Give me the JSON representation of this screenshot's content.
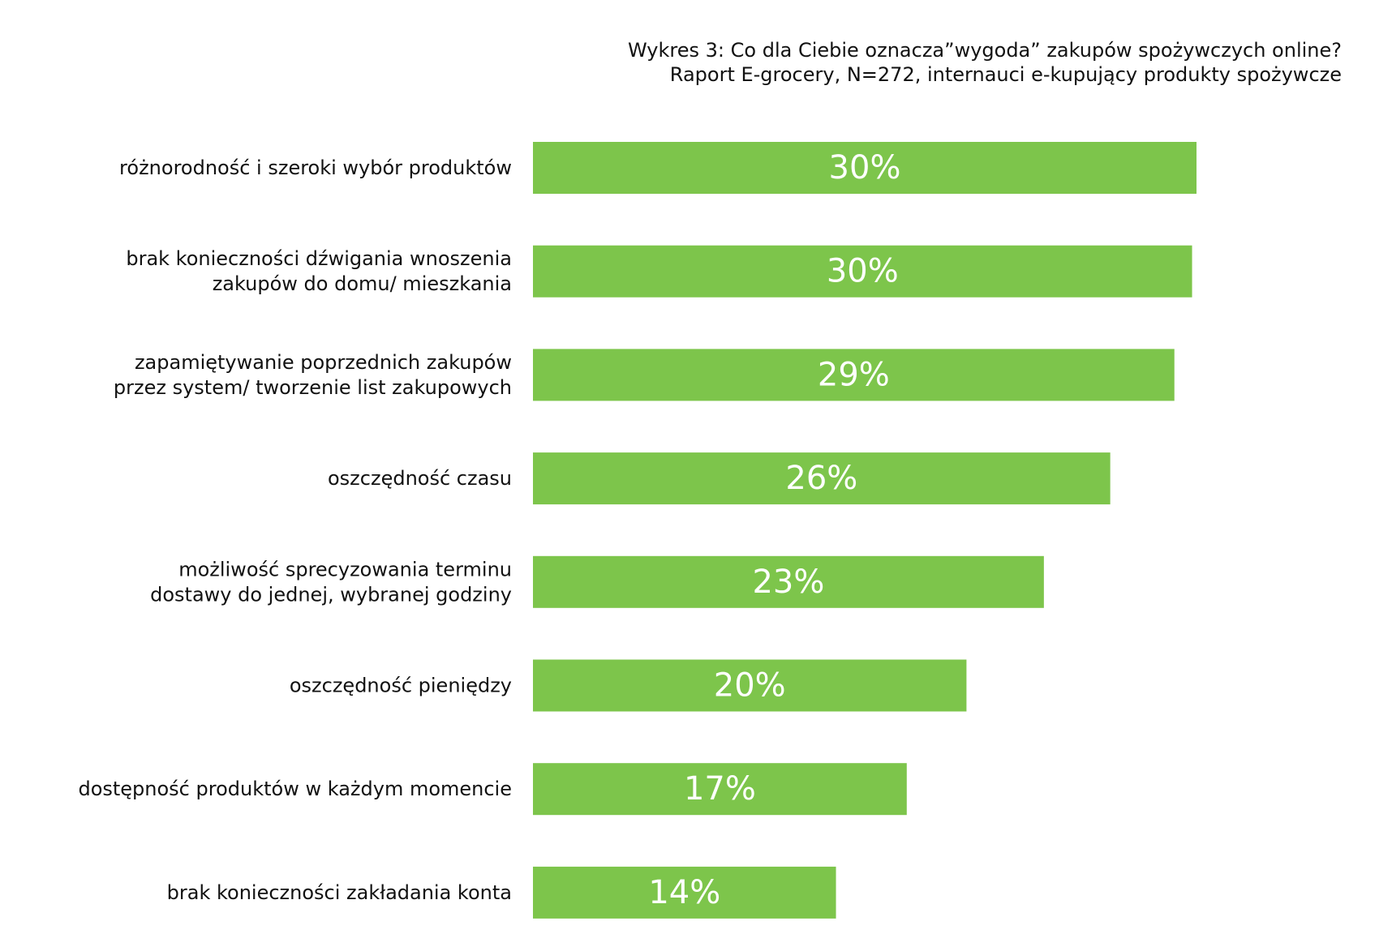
{
  "chart_data": {
    "type": "bar",
    "orientation": "horizontal",
    "title": "Wykres 3: Co dla Ciebie oznacza”wygoda” zakupów spożywczych online?",
    "subtitle": "Raport E-grocery, N=272, internauci e-kupujący produkty spożywcze",
    "xlabel": "",
    "ylabel": "",
    "xlim": [
      0,
      30
    ],
    "grid": false,
    "legend": "none",
    "bar_color": "#7dc54b",
    "value_label_color": "#ffffff",
    "categories": [
      "różnorodność i szeroki wybór produktów",
      "brak konieczności dźwigania wnoszenia zakupów do domu/ mieszkania",
      "zapamiętywanie poprzednich zakupów przez system/ tworzenie list zakupowych",
      "oszczędność czasu",
      "możliwość sprecyzowania terminu dostawy do jednej, wybranej godziny",
      "oszczędność pieniędzy",
      "dostępność produktów w każdym momencie",
      "brak konieczności zakładania konta"
    ],
    "category_lines": [
      [
        "różnorodność i szeroki wybór produktów"
      ],
      [
        "brak konieczności dźwigania wnoszenia",
        "zakupów do domu/ mieszkania"
      ],
      [
        "zapamiętywanie poprzednich zakupów",
        "przez system/ tworzenie list zakupowych"
      ],
      [
        "oszczędność czasu"
      ],
      [
        "możliwość sprecyzowania terminu",
        "dostawy do jednej, wybranej godziny"
      ],
      [
        "oszczędność pieniędzy"
      ],
      [
        "dostępność produktów w każdym momencie"
      ],
      [
        "brak konieczności zakładania konta"
      ]
    ],
    "values": [
      30,
      29.8,
      29,
      26.1,
      23.1,
      19.6,
      16.9,
      13.7
    ],
    "value_labels": [
      "30%",
      "30%",
      "29%",
      "26%",
      "23%",
      "20%",
      "17%",
      "14%"
    ]
  }
}
